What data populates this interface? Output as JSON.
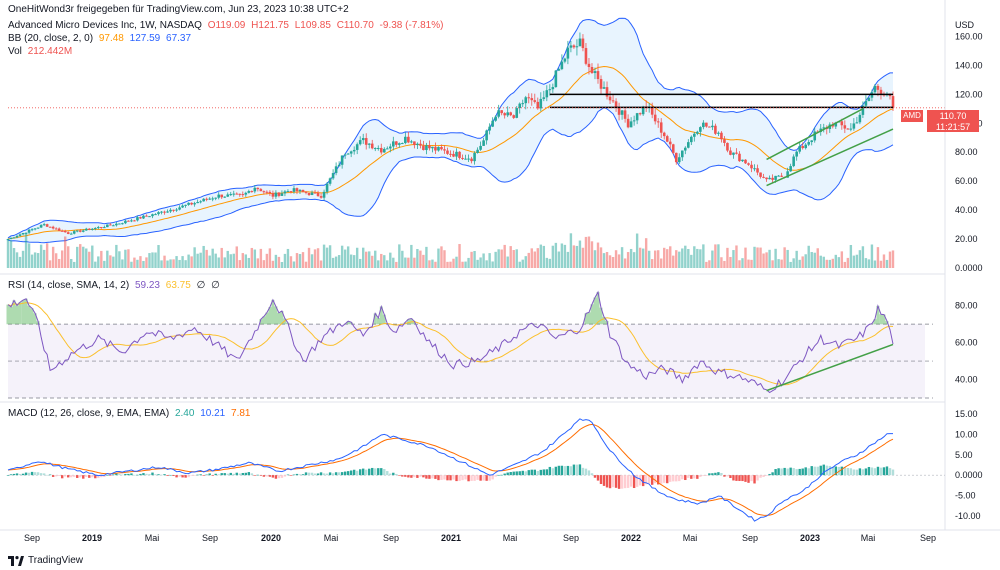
{
  "header": {
    "attribution": "OneHitWond3r freigegeben für TradingView.com, Jun 23, 2023 10:38 UTC+2",
    "symbol_line": "Advanced Micro Devices Inc, 1W, NASDAQ",
    "ohlc": {
      "o": "O119.09",
      "h": "H121.75",
      "l": "L109.85",
      "c": "C110.70",
      "chg": "-9.38 (-7.81%)"
    },
    "bb_label": "BB (20, close, 2, 0)",
    "bb_values": [
      "97.48",
      "127.59",
      "67.37"
    ],
    "vol_label": "Vol",
    "vol_value": "212.442M",
    "rsi_label": "RSI (14, close, SMA, 14, 2)",
    "rsi_values": [
      "59.23",
      "63.75",
      "∅",
      "∅"
    ],
    "macd_label": "MACD (12, 26, close, 9, EMA, EMA)",
    "macd_values": [
      "2.40",
      "10.21",
      "7.81"
    ]
  },
  "currency": "USD",
  "price_tag": {
    "symbol": "AMD",
    "price": "110.70",
    "countdown": "11:21:57"
  },
  "brand": "TradingView",
  "colors": {
    "up": "#26a69a",
    "down": "#ef5350",
    "bb": "#2962ff",
    "basis": "#ff9800",
    "rsi": "#7e57c2",
    "macd": "#2962ff",
    "signal": "#ff6d00",
    "trend": "#43a047"
  },
  "chart_data": [
    {
      "type": "candlestick",
      "title": "Advanced Micro Devices Inc, 1W, NASDAQ",
      "ylabel": "USD",
      "ylim": [
        0,
        170
      ],
      "yticks": [
        "160.00",
        "140.00",
        "120.00",
        "100.00",
        "80.00",
        "60.00",
        "40.00",
        "20.00",
        "0.0000"
      ],
      "x_labels": [
        "Sep",
        "2019",
        "Mai",
        "Sep",
        "2020",
        "Mai",
        "Sep",
        "2021",
        "Mai",
        "Sep",
        "2022",
        "Mai",
        "Sep",
        "2023",
        "Mai",
        "Sep"
      ],
      "anchors": [
        [
          0,
          20
        ],
        [
          12,
          30
        ],
        [
          20,
          24
        ],
        [
          35,
          30
        ],
        [
          50,
          38
        ],
        [
          62,
          45
        ],
        [
          70,
          50
        ],
        [
          78,
          50
        ],
        [
          82,
          56
        ],
        [
          88,
          50
        ],
        [
          94,
          54
        ],
        [
          104,
          50
        ],
        [
          112,
          80
        ],
        [
          118,
          88
        ],
        [
          124,
          82
        ],
        [
          132,
          90
        ],
        [
          138,
          84
        ],
        [
          146,
          80
        ],
        [
          154,
          76
        ],
        [
          158,
          88
        ],
        [
          162,
          107
        ],
        [
          168,
          104
        ],
        [
          172,
          118
        ],
        [
          176,
          110
        ],
        [
          180,
          124
        ],
        [
          186,
          150
        ],
        [
          190,
          155
        ],
        [
          194,
          135
        ],
        [
          200,
          118
        ],
        [
          206,
          100
        ],
        [
          212,
          112
        ],
        [
          218,
          92
        ],
        [
          222,
          75
        ],
        [
          230,
          100
        ],
        [
          236,
          94
        ],
        [
          240,
          80
        ],
        [
          246,
          72
        ],
        [
          252,
          60
        ],
        [
          258,
          64
        ],
        [
          262,
          80
        ],
        [
          268,
          92
        ],
        [
          274,
          100
        ],
        [
          280,
          96
        ],
        [
          284,
          110
        ],
        [
          288,
          125
        ],
        [
          292,
          121
        ],
        [
          294,
          110.7
        ]
      ],
      "horizontal_levels": [
        120,
        110.7
      ],
      "trendline": [
        [
          252,
          57
        ],
        [
          294,
          96
        ]
      ],
      "bollinger_bands": {
        "upper": "127.59",
        "basis": "97.48",
        "lower": "67.37"
      },
      "volume": {
        "max_label": "20.00",
        "last": "212.442M"
      }
    },
    {
      "type": "line",
      "title": "RSI (14, close, SMA, 14, 2)",
      "ylim": [
        30,
        95
      ],
      "yticks": [
        "80.00",
        "60.00",
        "40.00"
      ],
      "bands": [
        30,
        50,
        70
      ],
      "anchors": [
        [
          0,
          80
        ],
        [
          6,
          84
        ],
        [
          10,
          70
        ],
        [
          14,
          45
        ],
        [
          22,
          55
        ],
        [
          30,
          62
        ],
        [
          38,
          55
        ],
        [
          46,
          66
        ],
        [
          54,
          62
        ],
        [
          62,
          68
        ],
        [
          70,
          58
        ],
        [
          76,
          50
        ],
        [
          82,
          66
        ],
        [
          88,
          84
        ],
        [
          92,
          72
        ],
        [
          98,
          50
        ],
        [
          104,
          62
        ],
        [
          112,
          72
        ],
        [
          118,
          64
        ],
        [
          124,
          78
        ],
        [
          128,
          66
        ],
        [
          134,
          74
        ],
        [
          140,
          60
        ],
        [
          148,
          48
        ],
        [
          156,
          50
        ],
        [
          164,
          58
        ],
        [
          170,
          66
        ],
        [
          176,
          70
        ],
        [
          182,
          62
        ],
        [
          190,
          68
        ],
        [
          196,
          86
        ],
        [
          200,
          65
        ],
        [
          206,
          48
        ],
        [
          212,
          42
        ],
        [
          218,
          46
        ],
        [
          224,
          40
        ],
        [
          230,
          50
        ],
        [
          236,
          44
        ],
        [
          242,
          42
        ],
        [
          248,
          38
        ],
        [
          252,
          34
        ],
        [
          258,
          40
        ],
        [
          264,
          52
        ],
        [
          270,
          62
        ],
        [
          276,
          58
        ],
        [
          282,
          62
        ],
        [
          286,
          68
        ],
        [
          289,
          78
        ],
        [
          292,
          72
        ],
        [
          294,
          59.23
        ]
      ],
      "series": [
        {
          "name": "RSI",
          "last": "59.23"
        },
        {
          "name": "RSI-based MA",
          "last": "63.75"
        }
      ],
      "trendline": [
        [
          252,
          34
        ],
        [
          294,
          59
        ]
      ]
    },
    {
      "type": "line",
      "title": "MACD (12, 26, close, 9, EMA, EMA)",
      "ylim": [
        -12.5,
        17
      ],
      "yticks": [
        "15.00",
        "10.00",
        "5.00",
        "0.0000",
        "-5.00",
        "-10.00"
      ],
      "anchors": [
        [
          0,
          1
        ],
        [
          10,
          3.5
        ],
        [
          20,
          1.5
        ],
        [
          30,
          0
        ],
        [
          40,
          1
        ],
        [
          50,
          2
        ],
        [
          60,
          0.5
        ],
        [
          70,
          1.5
        ],
        [
          80,
          3
        ],
        [
          90,
          1
        ],
        [
          100,
          2.5
        ],
        [
          110,
          4
        ],
        [
          118,
          7
        ],
        [
          124,
          10
        ],
        [
          130,
          9
        ],
        [
          140,
          7
        ],
        [
          150,
          3.5
        ],
        [
          160,
          0
        ],
        [
          170,
          3
        ],
        [
          178,
          6
        ],
        [
          186,
          11
        ],
        [
          190,
          14
        ],
        [
          194,
          13
        ],
        [
          200,
          6
        ],
        [
          208,
          0
        ],
        [
          216,
          -4
        ],
        [
          222,
          -6
        ],
        [
          230,
          -7
        ],
        [
          236,
          -5
        ],
        [
          242,
          -8
        ],
        [
          248,
          -11
        ],
        [
          252,
          -10
        ],
        [
          258,
          -6
        ],
        [
          264,
          -4
        ],
        [
          270,
          0
        ],
        [
          276,
          3
        ],
        [
          282,
          5
        ],
        [
          288,
          8
        ],
        [
          292,
          10
        ],
        [
          294,
          10.21
        ]
      ],
      "series": [
        {
          "name": "Histogram",
          "last": "2.40"
        },
        {
          "name": "MACD",
          "last": "10.21"
        },
        {
          "name": "Signal",
          "last": "7.81"
        }
      ]
    }
  ]
}
